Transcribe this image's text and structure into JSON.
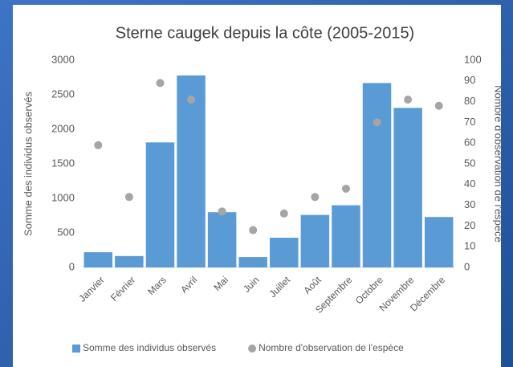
{
  "chart_data": {
    "type": "bar",
    "title": "Sterne caugek depuis la côte (2005-2015)",
    "y_label": "Somme des individus observés",
    "y2_label": "Nombre d'observation de l'espèce",
    "categories": [
      "Janvier",
      "Février",
      "Mars",
      "Avril",
      "Mai",
      "Juin",
      "Juillet",
      "Août",
      "Septembre",
      "Octobre",
      "Novembre",
      "Décembre"
    ],
    "series": [
      {
        "name": "Somme des individus observés",
        "type": "bar",
        "color": "#5b9bd5",
        "values": [
          220,
          165,
          1810,
          2780,
          800,
          150,
          430,
          760,
          900,
          2670,
          2310,
          730
        ]
      },
      {
        "name": "Nombre d'observation de l'espèce",
        "type": "scatter",
        "axis": "y2",
        "color": "#a5a5a5",
        "values": [
          59,
          34,
          89,
          81,
          27,
          18,
          26,
          34,
          38,
          70,
          81,
          78
        ]
      }
    ],
    "ylim": [
      0,
      3000
    ],
    "yticks": [
      0,
      500,
      1000,
      1500,
      2000,
      2500,
      3000
    ],
    "y2lim": [
      0,
      100
    ],
    "y2ticks": [
      0,
      10,
      20,
      30,
      40,
      50,
      60,
      70,
      80,
      90,
      100
    ],
    "legend": "bottom"
  }
}
